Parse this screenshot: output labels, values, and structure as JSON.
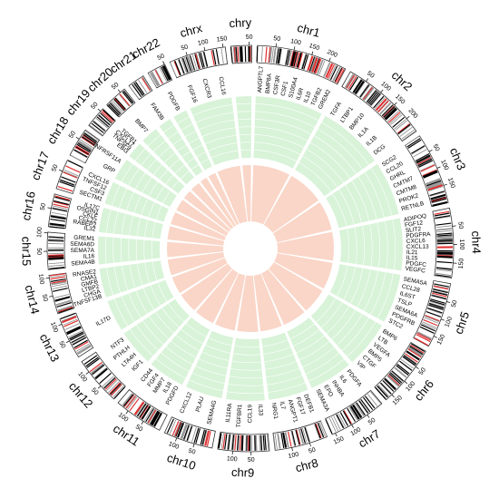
{
  "chart_data": {
    "type": "circos",
    "chromosomes": [
      {
        "name": "chr1",
        "xlim": [
          0,
          249
        ],
        "ticks": [
          50,
          100,
          150,
          200
        ],
        "genes": [
          "ANGPTL7",
          "BMP8A",
          "CSF3R",
          "CSF1",
          "S100A4",
          "IL6R",
          "IL10",
          "TGFB2",
          "GREM2"
        ]
      },
      {
        "name": "chr2",
        "xlim": [
          0,
          243
        ],
        "ticks": [
          50,
          100,
          150,
          200
        ],
        "genes": [
          "TGFA",
          "LTBP1",
          "BMP10",
          "IL1A",
          "IL1B",
          "DCG"
        ]
      },
      {
        "name": "chr3",
        "xlim": [
          0,
          198
        ],
        "ticks": [
          50,
          100,
          150
        ],
        "genes": [
          "SCG2",
          "CCL20",
          "GHRL",
          "CMTM7",
          "CMTM8",
          "PROK2",
          "RETNLB"
        ]
      },
      {
        "name": "chr4",
        "xlim": [
          0,
          191
        ],
        "ticks": [
          50,
          100,
          150
        ],
        "genes": [
          "ADIPOQ",
          "FGF12",
          "SLIT2",
          "PDGFRA",
          "CXCL6",
          "CXCL13",
          "IL21",
          "IL15",
          "PDGFC",
          "VEGFC"
        ]
      },
      {
        "name": "chr5",
        "xlim": [
          0,
          181
        ],
        "ticks": [
          50,
          100,
          150
        ],
        "genes": [
          "SEMA5A",
          "CCL28",
          "IL6ST",
          "TSLP",
          "SEMA6A",
          "PDGFRB",
          "STC2"
        ]
      },
      {
        "name": "chr6",
        "xlim": [
          0,
          171
        ],
        "ticks": [
          50,
          100,
          150
        ],
        "genes": [
          "BMP6",
          "LTB",
          "VEGFA",
          "BMP5",
          "CTGF",
          "VIP"
        ]
      },
      {
        "name": "chr7",
        "xlim": [
          0,
          159
        ],
        "ticks": [
          50,
          100,
          150
        ],
        "genes": [
          "PDGFA",
          "IL6",
          "INHBA",
          "EPO",
          "SEMA3A"
        ]
      },
      {
        "name": "chr8",
        "xlim": [
          0,
          146
        ],
        "ticks": [
          50,
          100
        ],
        "genes": [
          "DEFB1",
          "FGF17",
          "ANGPT1",
          "IL7",
          "NRG1"
        ]
      },
      {
        "name": "chr9",
        "xlim": [
          0,
          141
        ],
        "ticks": [
          50,
          100
        ],
        "genes": [
          "IL33",
          "CCL19",
          "TGFBR1",
          "IL11RA"
        ]
      },
      {
        "name": "chr10",
        "xlim": [
          0,
          136
        ],
        "ticks": [
          50,
          100
        ],
        "genes": [
          "SEMA4G",
          "PLAU",
          "CXCL12"
        ]
      },
      {
        "name": "chr11",
        "xlim": [
          0,
          135
        ],
        "ticks": [
          50,
          100
        ],
        "genes": [
          "PDGFD",
          "IL18",
          "MMP7",
          "FGF4",
          "CD44"
        ]
      },
      {
        "name": "chr12",
        "xlim": [
          0,
          134
        ],
        "ticks": [
          50,
          100
        ],
        "genes": [
          "IGF1",
          "LTA4H",
          "PTHLH",
          "NTF3"
        ]
      },
      {
        "name": "chr13",
        "xlim": [
          0,
          115
        ],
        "ticks": [
          50,
          100
        ],
        "genes": [
          "IL17D"
        ]
      },
      {
        "name": "chr14",
        "xlim": [
          0,
          107
        ],
        "ticks": [
          50,
          100
        ],
        "genes": [
          "TNFSF13B",
          "CHGA",
          "LTBP2",
          "GMFB",
          "CMA1",
          "RNASE2"
        ]
      },
      {
        "name": "chr15",
        "xlim": [
          0,
          102
        ],
        "ticks": [
          50,
          100
        ],
        "genes": [
          "SEMA4B",
          "IL16",
          "SEMA7A",
          "SEMA6D",
          "GREM1"
        ]
      },
      {
        "name": "chr16",
        "xlim": [
          0,
          90
        ],
        "ticks": [
          50
        ],
        "genes": [
          "IL32",
          "RABEP2",
          "CCL22",
          "CKLF",
          "OSGIN1",
          "IL17C"
        ]
      },
      {
        "name": "chr17",
        "xlim": [
          0,
          83
        ],
        "ticks": [
          50
        ],
        "genes": [
          "SECTM1",
          "CSF3",
          "TNFSF12",
          "CXCL16"
        ]
      },
      {
        "name": "chr18",
        "xlim": [
          0,
          80
        ],
        "ticks": [
          50
        ],
        "genes": [
          "GRP",
          "TNFRSF11A"
        ]
      },
      {
        "name": "chr19",
        "xlim": [
          0,
          59
        ],
        "ticks": [
          50
        ],
        "genes": [
          "EBI3",
          "TNFSF9",
          "CXCL17",
          "TGFB1"
        ]
      },
      {
        "name": "chr20",
        "xlim": [
          0,
          64
        ],
        "ticks": [
          50
        ],
        "genes": [
          "BMP7"
        ]
      },
      {
        "name": "chr21",
        "xlim": [
          0,
          47
        ],
        "ticks": [],
        "genes": [
          "FAM3B"
        ]
      },
      {
        "name": "chr22",
        "xlim": [
          0,
          51
        ],
        "ticks": [
          50
        ],
        "genes": [
          "PDGFB"
        ]
      },
      {
        "name": "chrx",
        "xlim": [
          0,
          156
        ],
        "ticks": [
          50,
          100,
          150
        ],
        "genes": [
          "FGF16",
          "CXCR3",
          "CCL16"
        ]
      },
      {
        "name": "chry",
        "xlim": [
          0,
          57
        ],
        "ticks": [
          50
        ],
        "genes": []
      }
    ]
  }
}
